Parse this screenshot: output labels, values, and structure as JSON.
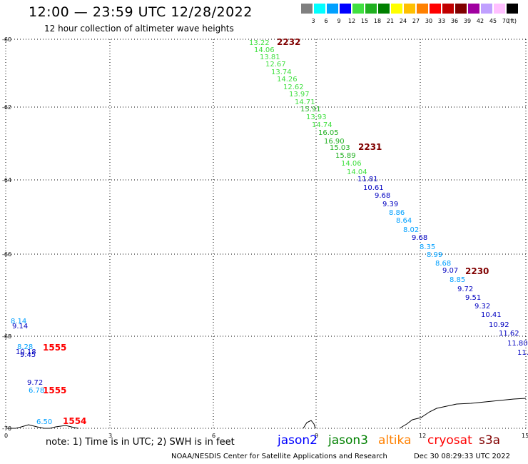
{
  "header": {
    "title": "12:00 — 23:59 UTC 12/28/2022",
    "subtitle": "12 hour collection of altimeter wave heights"
  },
  "colorbar": {
    "unit": "(ft)",
    "swatches": [
      {
        "label": "3",
        "color": "#808080"
      },
      {
        "label": "6",
        "color": "#00ffff"
      },
      {
        "label": "9",
        "color": "#00a0ff"
      },
      {
        "label": "12",
        "color": "#0000ff"
      },
      {
        "label": "15",
        "color": "#40e040"
      },
      {
        "label": "18",
        "color": "#20b020"
      },
      {
        "label": "21",
        "color": "#008000"
      },
      {
        "label": "24",
        "color": "#ffff00"
      },
      {
        "label": "27",
        "color": "#ffc000"
      },
      {
        "label": "30",
        "color": "#ff8000"
      },
      {
        "label": "33",
        "color": "#ff0000"
      },
      {
        "label": "36",
        "color": "#c00000"
      },
      {
        "label": "39",
        "color": "#800000"
      },
      {
        "label": "42",
        "color": "#a000a0"
      },
      {
        "label": "45",
        "color": "#c0a0ff"
      },
      {
        "label": "70",
        "color": "#ffc0ff"
      },
      {
        "label": "",
        "color": "#000000"
      }
    ]
  },
  "map": {
    "lat_labels": [
      "-60",
      "-62",
      "-64",
      "-66",
      "-68",
      "-70"
    ],
    "lon_labels": [
      "0",
      "3",
      "6",
      "9",
      "12",
      "15"
    ],
    "times": [
      {
        "text": "2232",
        "color": "#800000"
      },
      {
        "text": "2231",
        "color": "#800000"
      },
      {
        "text": "2230",
        "color": "#800000"
      },
      {
        "text": "1555",
        "color": "#ff0000"
      },
      {
        "text": "1555",
        "color": "#ff0000"
      },
      {
        "text": "1554",
        "color": "#ff0000"
      }
    ],
    "swh": [
      {
        "v": "13.22",
        "c": "#40e040"
      },
      {
        "v": "14.06",
        "c": "#40e040"
      },
      {
        "v": "13.81",
        "c": "#40e040"
      },
      {
        "v": "12.67",
        "c": "#40e040"
      },
      {
        "v": "13.74",
        "c": "#40e040"
      },
      {
        "v": "14.26",
        "c": "#40e040"
      },
      {
        "v": "12.62",
        "c": "#40e040"
      },
      {
        "v": "13.97",
        "c": "#40e040"
      },
      {
        "v": "14.71",
        "c": "#40e040"
      },
      {
        "v": "15.91",
        "c": "#20b020"
      },
      {
        "v": "13.93",
        "c": "#40e040"
      },
      {
        "v": "14.74",
        "c": "#40e040"
      },
      {
        "v": "16.05",
        "c": "#20b020"
      },
      {
        "v": "16.90",
        "c": "#20b020"
      },
      {
        "v": "15.03",
        "c": "#20b020"
      },
      {
        "v": "15.89",
        "c": "#20b020"
      },
      {
        "v": "14.06",
        "c": "#40e040"
      },
      {
        "v": "14.04",
        "c": "#40e040"
      },
      {
        "v": "11.81",
        "c": "#0000c0"
      },
      {
        "v": "10.61",
        "c": "#0000c0"
      },
      {
        "v": "9.68",
        "c": "#0000c0"
      },
      {
        "v": "9.39",
        "c": "#0000c0"
      },
      {
        "v": "8.86",
        "c": "#00a0ff"
      },
      {
        "v": "8.64",
        "c": "#00a0ff"
      },
      {
        "v": "8.02",
        "c": "#00a0ff"
      },
      {
        "v": "9.68",
        "c": "#0000c0"
      },
      {
        "v": "8.35",
        "c": "#00a0ff"
      },
      {
        "v": "8.99",
        "c": "#00a0ff"
      },
      {
        "v": "8.68",
        "c": "#00a0ff"
      },
      {
        "v": "9.07",
        "c": "#0000c0"
      },
      {
        "v": "8.85",
        "c": "#00a0ff"
      },
      {
        "v": "9.72",
        "c": "#0000c0"
      },
      {
        "v": "9.51",
        "c": "#0000c0"
      },
      {
        "v": "9.32",
        "c": "#0000c0"
      },
      {
        "v": "10.41",
        "c": "#0000c0"
      },
      {
        "v": "10.92",
        "c": "#0000c0"
      },
      {
        "v": "11.62",
        "c": "#0000c0"
      },
      {
        "v": "11.80",
        "c": "#0000c0"
      },
      {
        "v": "11.",
        "c": "#0000c0"
      },
      {
        "v": "8.14",
        "c": "#00a0ff"
      },
      {
        "v": "9.14",
        "c": "#0000c0"
      },
      {
        "v": "8.28",
        "c": "#00a0ff"
      },
      {
        "v": "10.18",
        "c": "#0000c0"
      },
      {
        "v": "9.45",
        "c": "#0000c0"
      },
      {
        "v": "9.72",
        "c": "#0000c0"
      },
      {
        "v": "6.78",
        "c": "#00a0ff"
      },
      {
        "v": "6.50",
        "c": "#00a0ff"
      }
    ]
  },
  "footer": {
    "note": "note:  1) Time is in UTC;  2) SWH is in feet",
    "satellites": [
      {
        "name": "jason2",
        "color": "#0000ff"
      },
      {
        "name": "jason3",
        "color": "#008000"
      },
      {
        "name": "altika",
        "color": "#ff8000"
      },
      {
        "name": "cryosat",
        "color": "#ff0000"
      },
      {
        "name": "s3a",
        "color": "#800000"
      }
    ],
    "credit": "NOAA/NESDIS Center for Satellite Applications and Research",
    "timestamp": "Dec 30 08:29:33 UTC 2022"
  }
}
